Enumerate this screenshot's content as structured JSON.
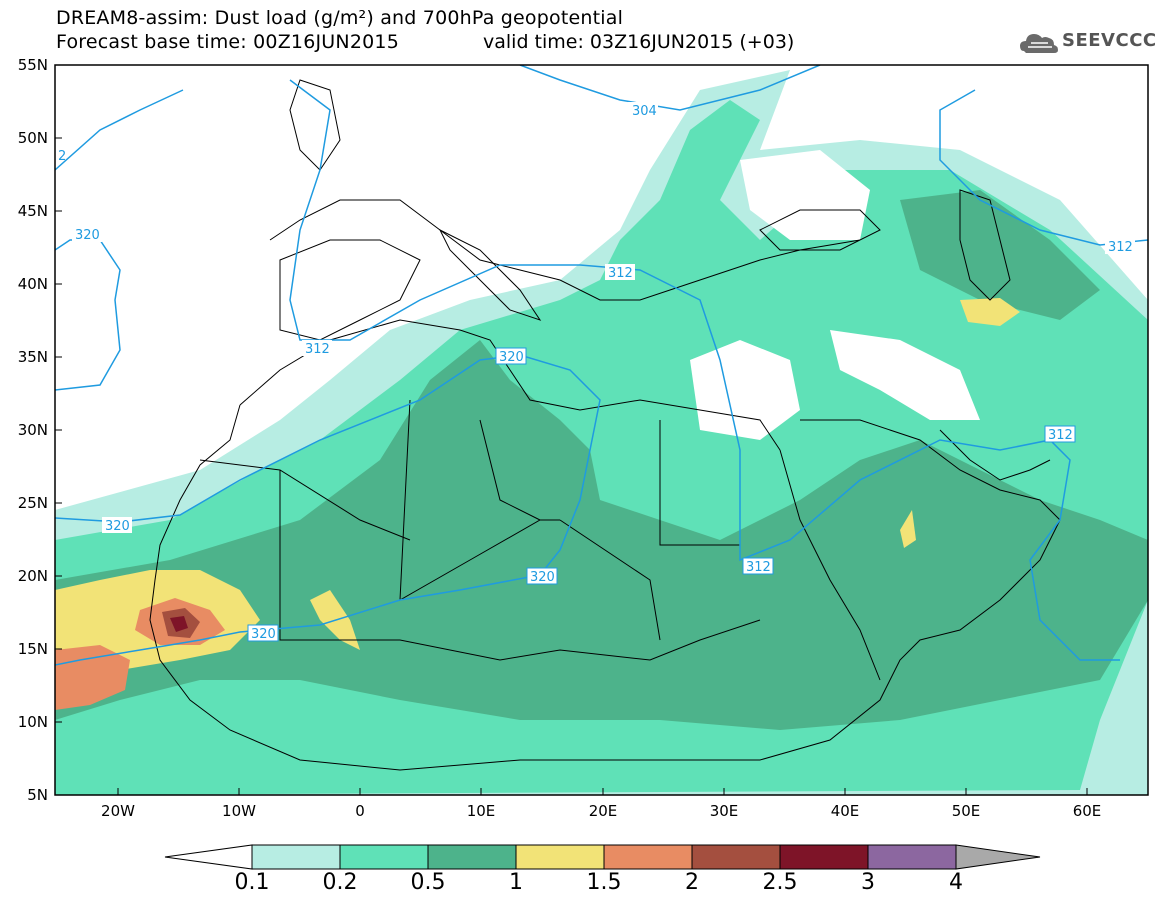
{
  "header": {
    "title_line1": "DREAM8-assim: Dust load (g/m²) and 700hPa geopotential",
    "title_line2": "Forecast base time: 00Z16JUN2015",
    "valid_time": "valid time: 03Z16JUN2015 (+03)",
    "logo_text": "SEEVCCC"
  },
  "map": {
    "lat_labels": [
      "55N",
      "50N",
      "45N",
      "40N",
      "35N",
      "30N",
      "25N",
      "20N",
      "15N",
      "10N",
      "5N"
    ],
    "lon_labels": [
      "20W",
      "10W",
      "0",
      "10E",
      "20E",
      "30E",
      "40E",
      "50E",
      "60E"
    ],
    "contour_labels": [
      "304",
      "312",
      "320",
      "312",
      "320",
      "320",
      "320",
      "312",
      "312",
      "2"
    ],
    "colors": {
      "c01": "#b7ede3",
      "c02": "#5fe1b7",
      "c05": "#4db38b",
      "c1": "#f2e377",
      "c15": "#e88c63",
      "c2": "#a44f3f",
      "c25": "#7e1428",
      "c3": "#8c67a0",
      "c4": "#a9a9a9",
      "contour": "#1f9be0",
      "border": "#000000"
    }
  },
  "colorbar": {
    "labels": [
      "0.1",
      "0.2",
      "0.5",
      "1",
      "1.5",
      "2",
      "2.5",
      "3",
      "4"
    ],
    "colors": [
      "#b7ede3",
      "#5fe1b7",
      "#4db38b",
      "#f2e377",
      "#e88c63",
      "#a44f3f",
      "#7e1428",
      "#8c67a0"
    ]
  }
}
